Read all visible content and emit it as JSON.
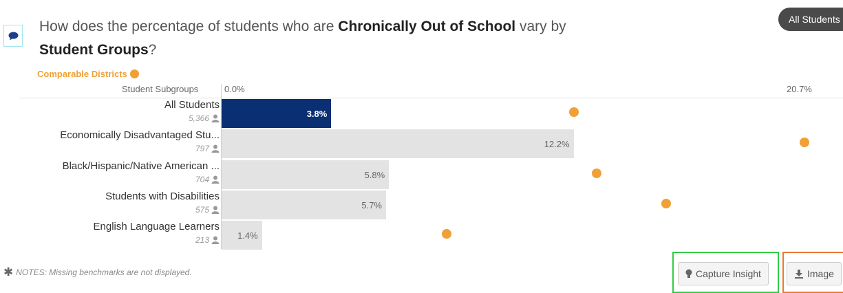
{
  "question": {
    "prefix": "How does the percentage of students who are ",
    "metric": "Chronically Out of School",
    "middle": " vary by",
    "group_dim": "Student Groups",
    "suffix": "?"
  },
  "filter_pill": "All Students",
  "benchmark_label": "Comparable Districts",
  "colors": {
    "primary_bar": "#0b2f73",
    "bar": "#e3e3e3",
    "benchmark": "#f0a035",
    "pill": "#4a4a4a"
  },
  "chart_data": {
    "type": "bar",
    "orientation": "horizontal",
    "category_header": "Student Subgroups",
    "axis_min_label": "0.0%",
    "axis_max_label": "20.7%",
    "xlim": [
      0,
      20.7
    ],
    "categories": [
      "All Students",
      "Economically Disadvantaged Stu...",
      "Black/Hispanic/Native American ...",
      "Students with Disabilities",
      "English Language Learners"
    ],
    "counts": [
      "5,366",
      "797",
      "704",
      "575",
      "213"
    ],
    "value_labels": [
      "3.8%",
      "12.2%",
      "5.8%",
      "5.7%",
      "1.4%"
    ],
    "series": [
      {
        "values": [
          3.8,
          12.2,
          5.8,
          5.7,
          1.4
        ]
      },
      {
        "name": "Comparable Districts",
        "values": [
          12.2,
          20.2,
          13.0,
          15.4,
          7.8
        ]
      }
    ]
  },
  "notes": "NOTES: Missing benchmarks are not displayed.",
  "buttons": {
    "capture": "Capture Insight",
    "image": "Image"
  }
}
